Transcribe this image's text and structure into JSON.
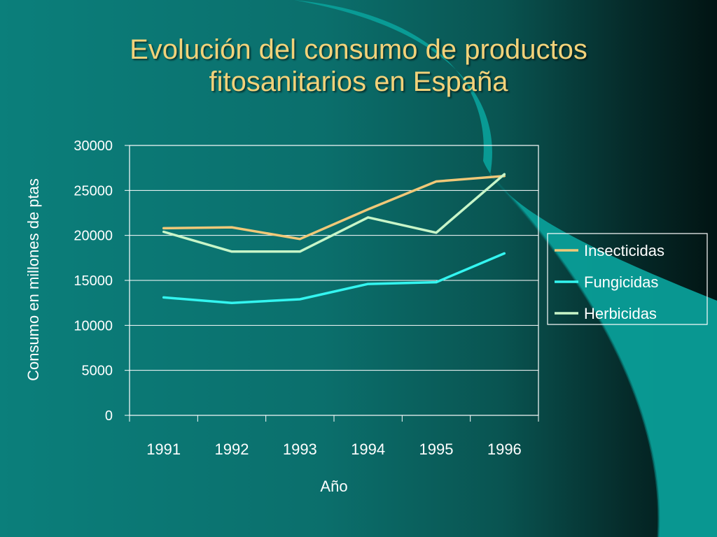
{
  "slide": {
    "title_line1": "Evolución del consumo de productos",
    "title_line2": "fitosanitarios en España",
    "title_color": "#f2d27a"
  },
  "chart_data": {
    "type": "line",
    "xlabel": "Año",
    "ylabel": "Consumo en millones de ptas",
    "categories": [
      "1991",
      "1992",
      "1993",
      "1994",
      "1995",
      "1996"
    ],
    "ylim": [
      0,
      30000
    ],
    "yticks": [
      0,
      5000,
      10000,
      15000,
      20000,
      25000,
      30000
    ],
    "grid": true,
    "legend_position": "right",
    "series": [
      {
        "name": "Insecticidas",
        "color": "#f0c878",
        "values": [
          20800,
          20900,
          19600,
          22900,
          26000,
          26600
        ]
      },
      {
        "name": "Fungicidas",
        "color": "#33f5f0",
        "values": [
          13100,
          12500,
          12900,
          14600,
          14800,
          18000
        ]
      },
      {
        "name": "Herbicidas",
        "color": "#c8f5c8",
        "values": [
          20400,
          18200,
          18200,
          22000,
          20300,
          26800
        ]
      }
    ]
  }
}
